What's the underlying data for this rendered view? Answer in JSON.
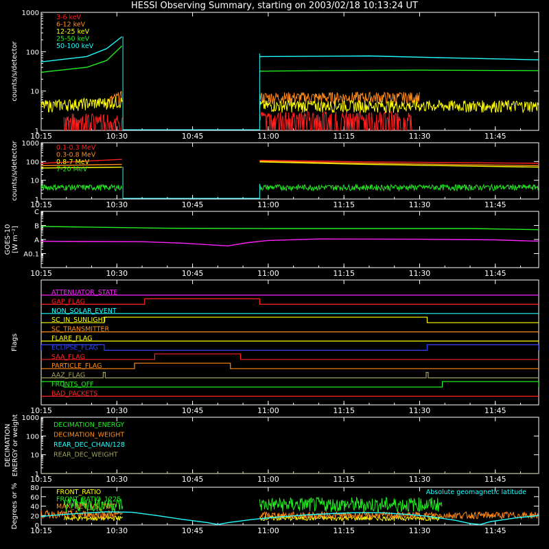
{
  "title": "HESSI Observing Summary, starting on 2003/02/18 10:13:24 UT",
  "time_axis": {
    "start_minutes": 615,
    "end_minutes": 713.6,
    "ticks": [
      {
        "t": 615,
        "label": "10:15"
      },
      {
        "t": 630,
        "label": "10:30"
      },
      {
        "t": 645,
        "label": "10:45"
      },
      {
        "t": 660,
        "label": "11:00"
      },
      {
        "t": 675,
        "label": "11:15"
      },
      {
        "t": 690,
        "label": "11:30"
      },
      {
        "t": 705,
        "label": "11:45"
      }
    ]
  },
  "colors": {
    "red": "#ff2020",
    "orange": "#ff8c1a",
    "yellow": "#ffff00",
    "green": "#22ee22",
    "cyan": "#22ffff",
    "magenta": "#ff22ff",
    "olive": "#a0a060",
    "blue": "#3344ff",
    "lightgreen": "#aaffaa",
    "axis": "#ffffff"
  },
  "chart_data": [
    {
      "id": "low-energy",
      "type": "line",
      "ylabel": "counts/s/detector",
      "yscale": "log",
      "ylim": [
        1,
        1000
      ],
      "yticks": [
        {
          "v": 1,
          "label": "1"
        },
        {
          "v": 10,
          "label": "10"
        },
        {
          "v": 100,
          "label": "100"
        },
        {
          "v": 1000,
          "label": "1000"
        }
      ],
      "gaps": [
        [
          631.2,
          658.3
        ]
      ],
      "series": [
        {
          "name": "3-6 keV",
          "color": "red",
          "pattern": "flag_noise",
          "segments": [
            [
              [
                619.5,
                1.6
              ],
              [
                631.2,
                1.6
              ]
            ],
            [
              [
                658.3,
                1.8
              ],
              [
                688.5,
                1.8
              ]
            ]
          ]
        },
        {
          "name": "6-12 keV",
          "color": "orange",
          "pattern": "noise",
          "segments": [
            [
              [
                628,
                5
              ],
              [
                631.2,
                7
              ]
            ],
            [
              [
                658.3,
                6.5
              ],
              [
                690,
                6.5
              ]
            ]
          ]
        },
        {
          "name": "12-25 keV",
          "color": "yellow",
          "pattern": "noise",
          "segments": [
            [
              [
                615,
                4
              ],
              [
                631.2,
                5
              ]
            ],
            [
              [
                658.3,
                4
              ],
              [
                713.6,
                4
              ]
            ]
          ]
        },
        {
          "name": "25-50 keV",
          "color": "green",
          "segments": [
            [
              [
                615,
                30
              ],
              [
                624,
                40
              ],
              [
                628,
                60
              ],
              [
                631,
                140
              ]
            ],
            [
              [
                658.3,
                32
              ],
              [
                670,
                33
              ],
              [
                690,
                34
              ],
              [
                713.6,
                33
              ]
            ]
          ]
        },
        {
          "name": "50-100 keV",
          "color": "cyan",
          "segments": [
            [
              [
                615,
                55
              ],
              [
                624,
                75
              ],
              [
                628,
                120
              ],
              [
                631,
                240
              ]
            ],
            [
              [
                658.3,
                75
              ],
              [
                680,
                78
              ],
              [
                695,
                70
              ],
              [
                713.6,
                62
              ]
            ]
          ]
        }
      ]
    },
    {
      "id": "high-energy",
      "type": "line",
      "ylabel": "counts/s/detector",
      "yscale": "log",
      "ylim": [
        1,
        1000
      ],
      "yticks": [
        {
          "v": 1,
          "label": "1"
        },
        {
          "v": 10,
          "label": "10"
        },
        {
          "v": 100,
          "label": "100"
        },
        {
          "v": 1000,
          "label": "1000"
        }
      ],
      "gaps": [
        [
          631.2,
          658.3
        ]
      ],
      "series": [
        {
          "name": "0.1-0.3 MeV",
          "color": "red",
          "segments": [
            [
              [
                615,
                80
              ],
              [
                631,
                130
              ]
            ],
            [
              [
                658.3,
                115
              ],
              [
                680,
                95
              ],
              [
                713.6,
                80
              ]
            ]
          ]
        },
        {
          "name": "0.3-0.8 MeV",
          "color": "orange",
          "segments": [
            [
              [
                615,
                60
              ],
              [
                631,
                70
              ]
            ],
            [
              [
                658.3,
                105
              ],
              [
                680,
                80
              ],
              [
                713.6,
                60
              ]
            ]
          ]
        },
        {
          "name": "0.8-7 MeV",
          "color": "yellow",
          "segments": [
            [
              [
                615,
                45
              ],
              [
                631,
                50
              ]
            ],
            [
              [
                658.3,
                95
              ],
              [
                680,
                70
              ],
              [
                713.6,
                50
              ]
            ]
          ]
        },
        {
          "name": "7-20 MeV",
          "color": "green",
          "pattern": "noise",
          "segments": [
            [
              [
                615,
                4
              ],
              [
                631,
                4
              ]
            ],
            [
              [
                658.3,
                4
              ],
              [
                680,
                5
              ],
              [
                713.6,
                4
              ]
            ]
          ]
        }
      ]
    },
    {
      "id": "goes",
      "type": "line",
      "ylabel": "GOES-10",
      "ylabel2": "[W m⁻²]",
      "yscale": "log",
      "ylim": [
        1e-09,
        1e-05
      ],
      "yticks": [
        {
          "v": 1e-05,
          "label": "C"
        },
        {
          "v": 1e-06,
          "label": "B"
        },
        {
          "v": 1e-07,
          "label": "A"
        },
        {
          "v": 1e-08,
          "label": "A0.1"
        }
      ],
      "series": [
        {
          "name": "",
          "color": "green",
          "segments": [
            [
              [
                615,
                8.5e-07
              ],
              [
                620,
                8e-07
              ],
              [
                640,
                6.3e-07
              ],
              [
                660,
                6e-07
              ],
              [
                680,
                6e-07
              ],
              [
                700,
                6e-07
              ],
              [
                713.6,
                5e-07
              ]
            ]
          ]
        },
        {
          "name": "",
          "color": "magenta",
          "segments": [
            [
              [
                615,
                7.5e-08
              ],
              [
                635,
                7e-08
              ],
              [
                643,
                5.5e-08
              ],
              [
                652,
                3.5e-08
              ],
              [
                656,
                6e-08
              ],
              [
                660,
                8.5e-08
              ],
              [
                670,
                1.1e-07
              ],
              [
                690,
                1.05e-07
              ],
              [
                705,
                9.5e-08
              ],
              [
                713.6,
                7.5e-08
              ]
            ]
          ]
        }
      ]
    },
    {
      "id": "flags",
      "type": "line",
      "ylabel": "Flags",
      "series": [
        {
          "name": "ATTENUATOR_STATE",
          "color": "magenta",
          "steps": []
        },
        {
          "name": "GAP_FLAG",
          "color": "red",
          "steps": [
            [
              635.5,
              658.3
            ]
          ]
        },
        {
          "name": "NON_SOLAR_EVENT",
          "color": "cyan",
          "steps": []
        },
        {
          "name": "SC_IN_SUNLIGHT",
          "color": "yellow",
          "steps": [
            [
              627.5,
              691.5
            ]
          ]
        },
        {
          "name": "SC_TRANSMITTER",
          "color": "orange",
          "steps": []
        },
        {
          "name": "FLARE_FLAG",
          "color": "yellow",
          "steps": []
        },
        {
          "name": "ECLIPSE_FLAG",
          "color": "blue",
          "steps": [
            [
              615,
              627.5
            ],
            [
              691.5,
              713.6
            ]
          ]
        },
        {
          "name": "SAA_FLAG",
          "color": "red",
          "steps": [
            [
              637.5,
              654.5
            ]
          ]
        },
        {
          "name": "PARTICLE_FLAG",
          "color": "orange",
          "steps": [
            [
              633.5,
              652.5
            ]
          ]
        },
        {
          "name": "AAZ_FLAG",
          "color": "olive",
          "steps": [
            [
              627.3,
              627.7
            ],
            [
              691.3,
              691.7
            ]
          ]
        },
        {
          "name": "FRONTS_OFF",
          "color": "green",
          "steps": [
            [
              615,
              619.5
            ],
            [
              694.5,
              713.6
            ]
          ]
        },
        {
          "name": "BAD_PACKETS",
          "color": "red",
          "steps": []
        }
      ]
    },
    {
      "id": "decimation",
      "type": "line",
      "ylabel": "DECIMATION",
      "ylabel2": "ENERGY or weight",
      "yscale": "log",
      "ylim": [
        1,
        1000
      ],
      "yticks": [
        {
          "v": 1,
          "label": "1"
        },
        {
          "v": 10,
          "label": "10"
        },
        {
          "v": 100,
          "label": "100"
        },
        {
          "v": 1000,
          "label": "1000"
        }
      ],
      "series": [
        {
          "name": "DECIMATION_ENERGY",
          "color": "green",
          "segments": []
        },
        {
          "name": "DECIMATION_WEIGHT",
          "color": "orange",
          "segments": []
        },
        {
          "name": "REAR_DEC_CHAN/128",
          "color": "cyan",
          "segments": []
        },
        {
          "name": "REAR_DEC_WEIGHT",
          "color": "olive",
          "segments": [
            [
              [
                615,
                1
              ],
              [
                713.6,
                1
              ]
            ]
          ]
        }
      ]
    },
    {
      "id": "ratios",
      "type": "line",
      "ylabel": "Degrees or %",
      "ylim": [
        0,
        80
      ],
      "yticks": [
        {
          "v": 0,
          "label": "0"
        },
        {
          "v": 20,
          "label": "20"
        },
        {
          "v": 40,
          "label": "40"
        },
        {
          "v": 60,
          "label": "60"
        },
        {
          "v": 80,
          "label": "80"
        }
      ],
      "annotation": "Absolute geomagnetic latitude",
      "series": [
        {
          "name": "FRONT_RATIO",
          "color": "yellow",
          "pattern": "noise",
          "segments": [
            [
              [
                619.5,
                14
              ],
              [
                631.2,
                14
              ]
            ],
            [
              [
                658.3,
                14
              ],
              [
                694.5,
                14
              ]
            ]
          ]
        },
        {
          "name": "FRONT_RATIO_1225",
          "color": "green",
          "pattern": "noise",
          "segments": [
            [
              [
                619.5,
                42
              ],
              [
                631.2,
                42
              ]
            ],
            [
              [
                658.3,
                42
              ],
              [
                694.5,
                42
              ]
            ]
          ]
        },
        {
          "name": "MAX_DET_VS_TOT",
          "color": "orange",
          "pattern": "noise",
          "segments": [
            [
              [
                615,
                22
              ],
              [
                631.2,
                22
              ]
            ],
            [
              [
                658.3,
                20
              ],
              [
                713.6,
                20
              ]
            ]
          ]
        },
        {
          "name": "",
          "color": "cyan",
          "segments": [
            [
              [
                615,
                18
              ],
              [
                619,
                22
              ],
              [
                623,
                25
              ],
              [
                628,
                28
              ],
              [
                633,
                27
              ],
              [
                638,
                20
              ],
              [
                643,
                12
              ],
              [
                648,
                5
              ],
              [
                650,
                1
              ],
              [
                652,
                5
              ],
              [
                657,
                12
              ],
              [
                662,
                17
              ],
              [
                667,
                21
              ],
              [
                672,
                24
              ],
              [
                677,
                26
              ],
              [
                682,
                26
              ],
              [
                687,
                23
              ],
              [
                692,
                18
              ],
              [
                697,
                10
              ],
              [
                700,
                3
              ],
              [
                702,
                1
              ],
              [
                704,
                7
              ],
              [
                709,
                15
              ],
              [
                713.6,
                20
              ]
            ]
          ]
        }
      ]
    }
  ]
}
